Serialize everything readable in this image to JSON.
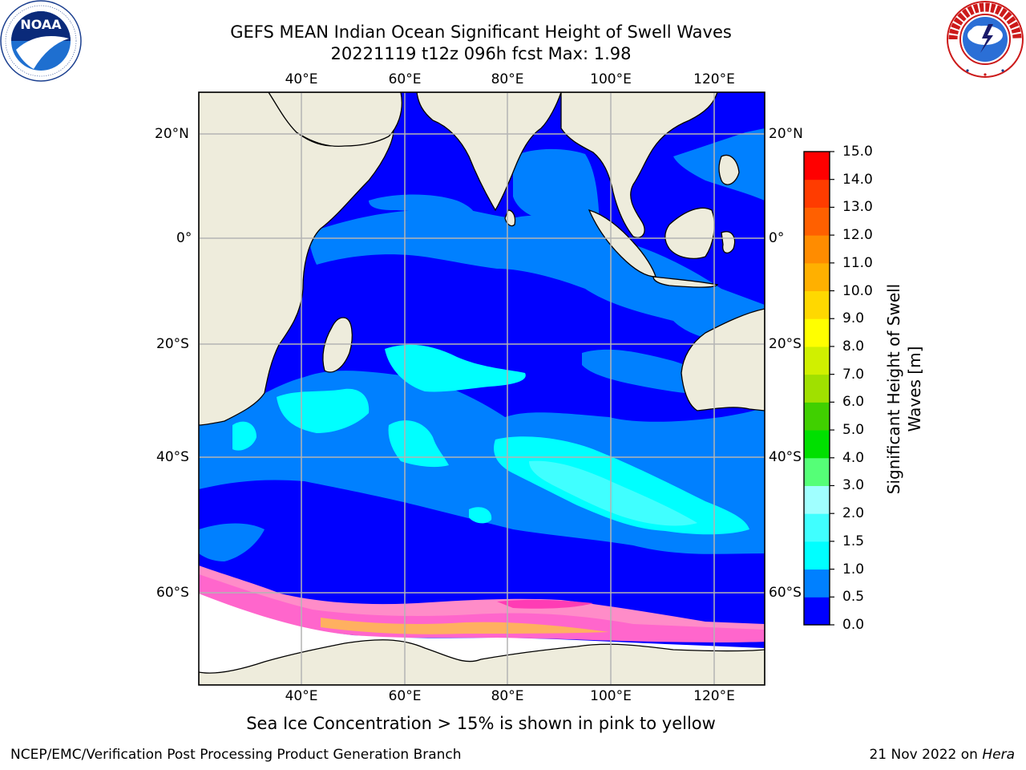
{
  "header": {
    "title_line1": "GEFS MEAN Indian Ocean Significant Height of Swell Waves",
    "title_line2": "20221119 t12z 096h fcst   Max: 1.98"
  },
  "logos": {
    "left_name": "noaa-logo",
    "left_text": "NOAA",
    "right_name": "nws-logo",
    "right_ring_text": "NATIONAL WEATHER SERVICE"
  },
  "map": {
    "land_color": "#eeecdc",
    "grid_color": "#b4b4b4",
    "lon_labels": [
      "40°E",
      "60°E",
      "80°E",
      "100°E",
      "120°E"
    ],
    "lat_labels": [
      "20°N",
      "0°",
      "20°S",
      "40°S",
      "60°S"
    ]
  },
  "colorbar": {
    "label_line1": "Significant Height of Swell",
    "label_line2": "Waves [m]",
    "ticks": [
      "0.0",
      "0.5",
      "1.0",
      "1.5",
      "2.0",
      "3.0",
      "4.0",
      "5.0",
      "6.0",
      "7.0",
      "8.0",
      "9.0",
      "10.0",
      "11.0",
      "12.0",
      "13.0",
      "14.0",
      "15.0"
    ],
    "colors": [
      "#0000ff",
      "#0080ff",
      "#00ffff",
      "#40ffff",
      "#a0ffff",
      "#55ff77",
      "#00e000",
      "#40d000",
      "#a0e000",
      "#d0f000",
      "#ffff00",
      "#ffd800",
      "#ffb000",
      "#ff8c00",
      "#ff6000",
      "#ff3c00",
      "#ff0000"
    ]
  },
  "footer": {
    "note": "Sea Ice Concentration > 15% is shown in pink to yellow",
    "credit_left": "NCEP/EMC/Verification Post Processing Product Generation Branch",
    "credit_right_prefix": "21 Nov 2022 on ",
    "credit_right_machine": "Hera"
  }
}
